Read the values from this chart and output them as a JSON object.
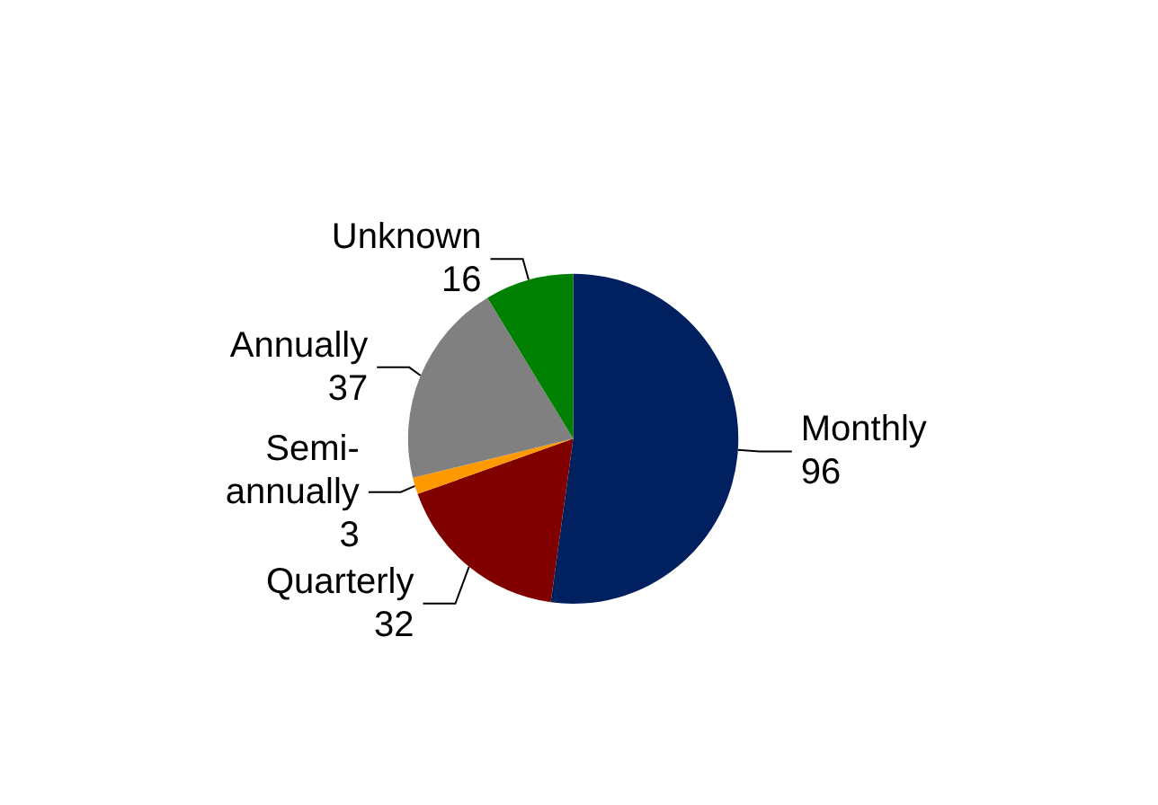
{
  "chart_data": {
    "type": "pie",
    "categories": [
      "Monthly",
      "Quarterly",
      "Semi-annually",
      "Annually",
      "Unknown"
    ],
    "values": [
      96,
      32,
      3,
      37,
      16
    ],
    "colors": [
      "#002060",
      "#800000",
      "#ff9900",
      "#808080",
      "#008000"
    ],
    "data_labels": true,
    "legend": false
  }
}
